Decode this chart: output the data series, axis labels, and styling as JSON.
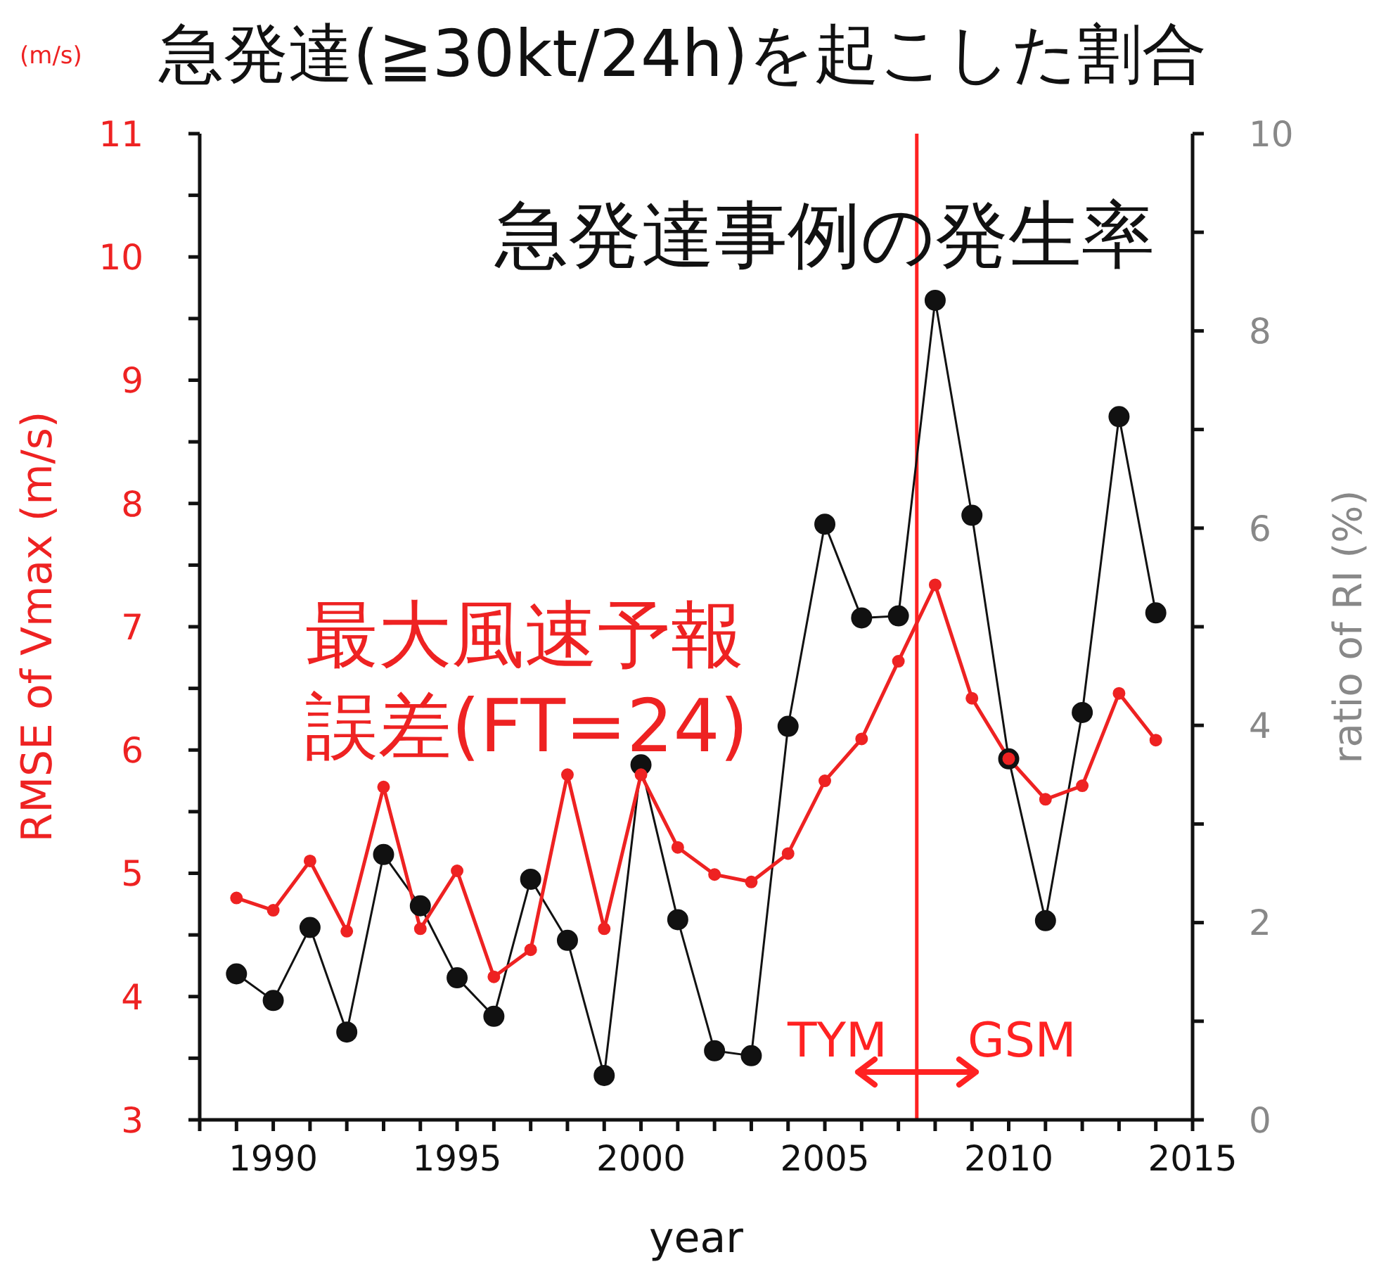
{
  "chart_data": {
    "type": "line",
    "title": "急発達(≧30kt/24h)を起こした割合",
    "xlabel": "year",
    "ylabel": "RMSE of Vmax (m/s)",
    "y2label": "ratio of RI (%)",
    "x": [
      1989,
      1990,
      1991,
      1992,
      1993,
      1994,
      1995,
      1996,
      1997,
      1998,
      1999,
      2000,
      2001,
      2002,
      2003,
      2004,
      2005,
      2006,
      2007,
      2008,
      2009,
      2010,
      2011,
      2012,
      2013,
      2014
    ],
    "series": [
      {
        "name": "最大風速予報誤差(FT=24)",
        "color": "#ee2222",
        "values": [
          4.8,
          4.7,
          5.1,
          4.53,
          5.7,
          4.55,
          5.02,
          4.16,
          4.38,
          5.8,
          4.55,
          5.8,
          5.21,
          4.99,
          4.93,
          5.16,
          5.75,
          6.09,
          6.72,
          7.34,
          6.42,
          5.93,
          5.6,
          5.71,
          6.46,
          6.08
        ]
      },
      {
        "name": "急発達事例の発生率",
        "color": "#111111",
        "axis": "y2",
        "values": [
          1.48,
          1.21,
          1.95,
          0.89,
          2.69,
          2.17,
          1.44,
          1.05,
          2.44,
          1.82,
          0.45,
          3.6,
          2.03,
          0.7,
          0.65,
          3.99,
          6.04,
          5.09,
          5.11,
          8.31,
          6.13,
          3.66,
          2.02,
          4.13,
          7.13,
          5.14
        ]
      }
    ],
    "xlim": [
      1988,
      2015
    ],
    "xticks": [
      {
        "value": 1988,
        "label": null
      },
      {
        "value": 1989,
        "label": null
      },
      1990,
      {
        "value": 1991,
        "label": null
      },
      {
        "value": 1992,
        "label": null
      },
      {
        "value": 1993,
        "label": null
      },
      {
        "value": 1994,
        "label": null
      },
      1995,
      {
        "value": 1996,
        "label": null
      },
      {
        "value": 1997,
        "label": null
      },
      {
        "value": 1998,
        "label": null
      },
      {
        "value": 1999,
        "label": null
      },
      2000,
      {
        "value": 2001,
        "label": null
      },
      {
        "value": 2002,
        "label": null
      },
      {
        "value": 2003,
        "label": null
      },
      {
        "value": 2004,
        "label": null
      },
      2005,
      {
        "value": 2006,
        "label": null
      },
      {
        "value": 2007,
        "label": null
      },
      {
        "value": 2008,
        "label": null
      },
      {
        "value": 2009,
        "label": null
      },
      2010,
      {
        "value": 2011,
        "label": null
      },
      {
        "value": 2012,
        "label": null
      },
      {
        "value": 2013,
        "label": null
      },
      {
        "value": 2014,
        "label": null
      },
      2015
    ],
    "ylim": [
      3,
      11
    ],
    "yticks": [
      3,
      {
        "value": 3.5,
        "label": null
      },
      4,
      {
        "value": 4.5,
        "label": null
      },
      5,
      {
        "value": 5.5,
        "label": null
      },
      6,
      {
        "value": 6.5,
        "label": null
      },
      7,
      {
        "value": 7.5,
        "label": null
      },
      8,
      {
        "value": 8.5,
        "label": null
      },
      9,
      {
        "value": 9.5,
        "label": null
      },
      10,
      {
        "value": 10.5,
        "label": null
      },
      11
    ],
    "y2lim": [
      0,
      10
    ],
    "y2ticks": [
      0,
      {
        "value": 1,
        "label": null
      },
      2,
      {
        "value": 3,
        "label": null
      },
      4,
      {
        "value": 5,
        "label": null
      },
      6,
      {
        "value": 7,
        "label": null
      },
      8,
      {
        "value": 9,
        "label": null
      },
      10
    ],
    "ref_lines": [
      {
        "axis": "x",
        "value": 2007.5,
        "color": "#ff2222"
      }
    ],
    "annotations": [
      "(m/s)",
      "TYM",
      "GSM"
    ],
    "marker": "circle"
  }
}
